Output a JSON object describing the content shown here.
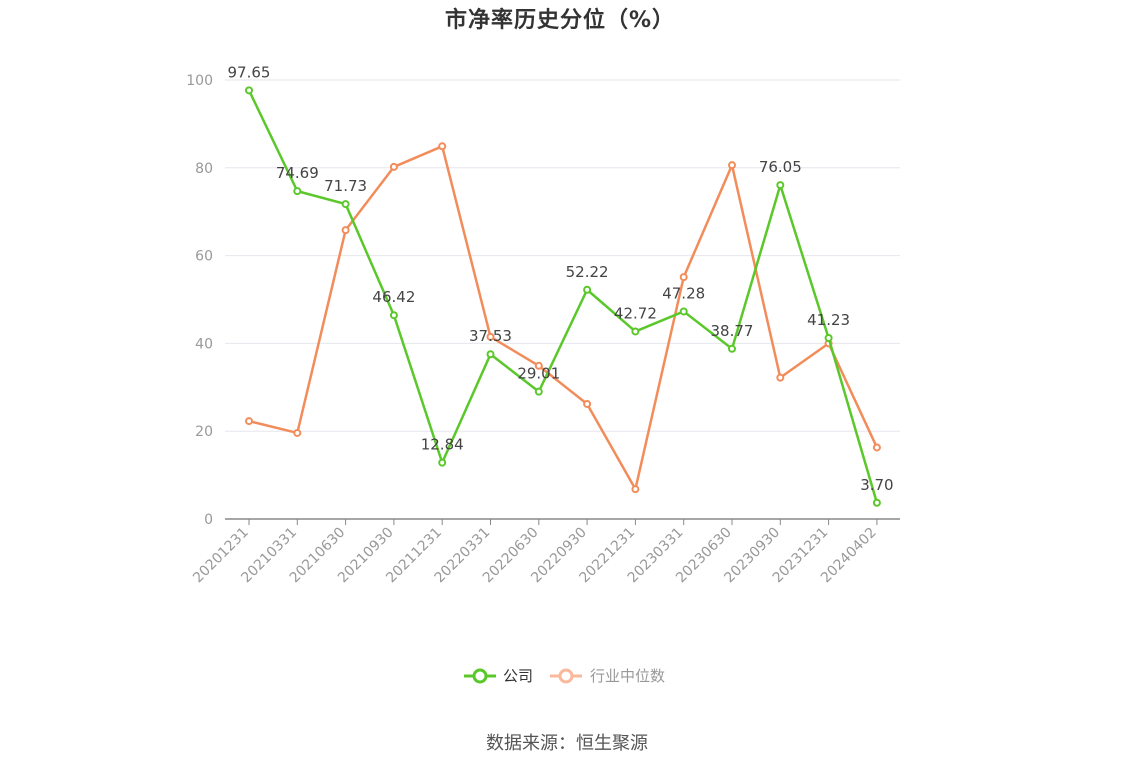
{
  "chart_data": {
    "type": "line",
    "title": "市净率历史分位（%）",
    "categories": [
      "20201231",
      "20210331",
      "20210630",
      "20210930",
      "20211231",
      "20220331",
      "20220630",
      "20220930",
      "20221231",
      "20230331",
      "20230630",
      "20230930",
      "20231231",
      "20240402"
    ],
    "ylim": [
      0,
      100
    ],
    "yticks": [
      0,
      20,
      40,
      60,
      80,
      100
    ],
    "grid": true,
    "legend_position": "bottom",
    "series": [
      {
        "name": "公司",
        "color": "#5ac82a",
        "values": [
          97.65,
          74.69,
          71.73,
          46.42,
          12.84,
          37.53,
          29.01,
          52.22,
          42.72,
          47.28,
          38.77,
          76.05,
          41.23,
          3.7
        ],
        "labels": [
          "97.65",
          "74.69",
          "71.73",
          "46.42",
          "12.84",
          "37.53",
          "29.01",
          "52.22",
          "42.72",
          "47.28",
          "38.77",
          "76.05",
          "41.23",
          "3.70"
        ]
      },
      {
        "name": "行业中位数",
        "color": "#f28c5a",
        "values": [
          22.3,
          19.6,
          65.8,
          80.2,
          84.9,
          41.5,
          34.9,
          26.2,
          6.8,
          55.1,
          80.6,
          32.2,
          40.0,
          16.3
        ]
      }
    ]
  },
  "legend": {
    "company_label": "公司",
    "industry_label": "行业中位数",
    "company_color": "#5ac82a",
    "industry_color": "#f9b99a",
    "industry_text_color": "#999999"
  },
  "source": "数据来源：恒生聚源"
}
